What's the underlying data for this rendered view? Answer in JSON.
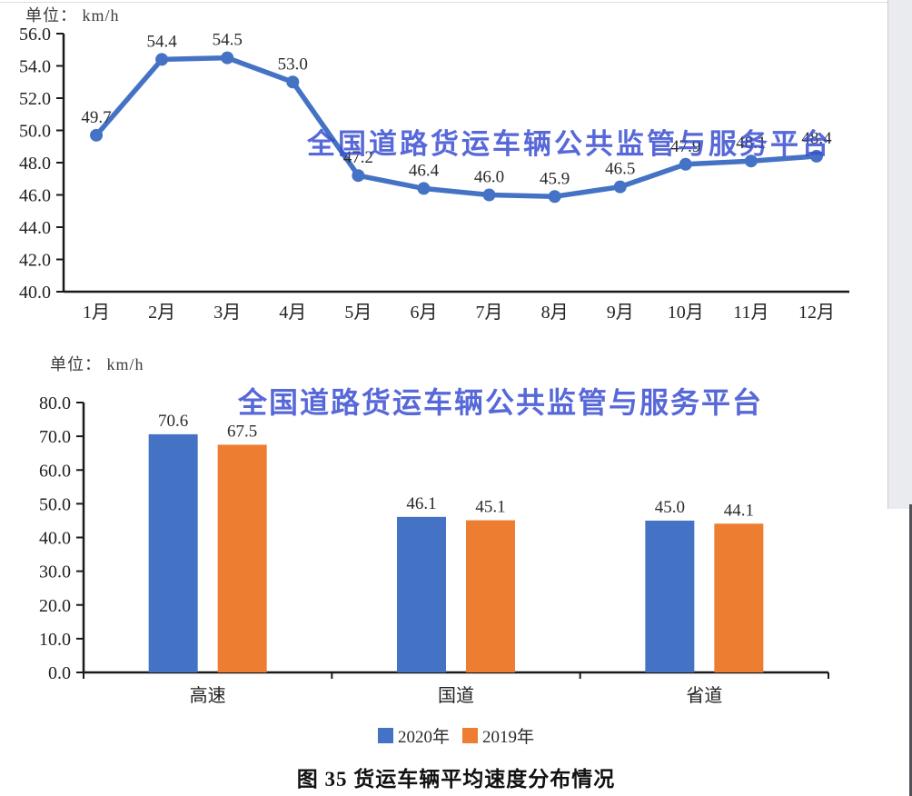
{
  "watermark": {
    "text": "全国道路货运车辆公共监管与服务平台",
    "color": "#3a4ed2"
  },
  "figure": {
    "caption": "图 35 货运车辆平均速度分布情况"
  },
  "colors": {
    "axis": "#1a1a1a",
    "data_label": "#2a2a2a",
    "series_blue": "#4472C4",
    "series_orange": "#ED7D31"
  },
  "chart_data": [
    {
      "type": "line",
      "unit_label": "单位： km/h",
      "categories": [
        "1月",
        "2月",
        "3月",
        "4月",
        "5月",
        "6月",
        "7月",
        "8月",
        "9月",
        "10月",
        "11月",
        "12月"
      ],
      "series": [
        {
          "name": "",
          "color": "#4472C4",
          "values": [
            49.7,
            54.4,
            54.5,
            53.0,
            47.2,
            46.4,
            46.0,
            45.9,
            46.5,
            47.9,
            48.1,
            48.4
          ]
        }
      ],
      "ylim": [
        40.0,
        56.0
      ],
      "ytick_step": 2.0,
      "grid": false,
      "data_labels": true,
      "legend_position": "none"
    },
    {
      "type": "bar",
      "unit_label": "单位： km/h",
      "categories": [
        "高速",
        "国道",
        "省道"
      ],
      "series": [
        {
          "name": "2020年",
          "color": "#4472C4",
          "values": [
            70.6,
            46.1,
            45.0
          ]
        },
        {
          "name": "2019年",
          "color": "#ED7D31",
          "values": [
            67.5,
            45.1,
            44.1
          ]
        }
      ],
      "ylim": [
        0.0,
        80.0
      ],
      "ytick_step": 10.0,
      "grid": false,
      "data_labels": true,
      "legend_position": "bottom"
    }
  ]
}
